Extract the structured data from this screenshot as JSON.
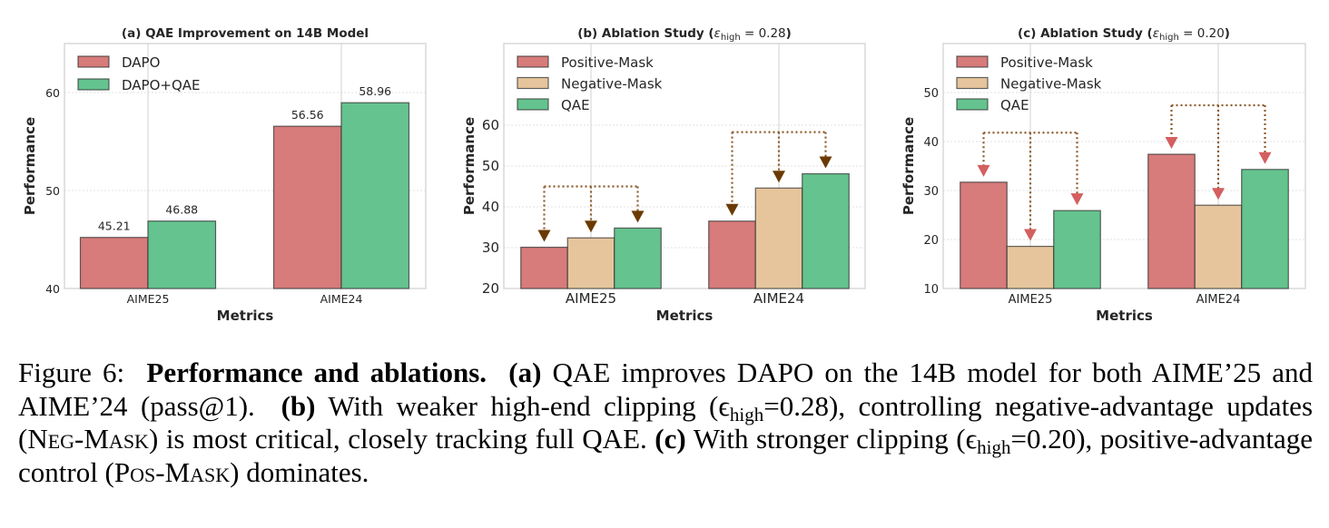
{
  "chart_data": [
    {
      "type": "bar",
      "id": "a",
      "title": "(a) QAE Improvement on 14B Model",
      "title_parts": {
        "main": "(a) QAE Improvement on 14B Model",
        "math": ""
      },
      "xlabel": "Metrics",
      "ylabel": "Performance",
      "categories": [
        "AIME25",
        "AIME24"
      ],
      "ylim": [
        40,
        65
      ],
      "yticks": [
        40,
        50,
        60
      ],
      "grid": true,
      "legend": "top-left",
      "series": [
        {
          "name": "DAPO",
          "color": "#d77b7b",
          "values": [
            45.21,
            56.56
          ],
          "labels": [
            "45.21",
            "56.56"
          ]
        },
        {
          "name": "DAPO+QAE",
          "color": "#64c38e",
          "values": [
            46.88,
            58.96
          ],
          "labels": [
            "46.88",
            "58.96"
          ]
        }
      ],
      "annotations": []
    },
    {
      "type": "bar",
      "id": "b",
      "title": "(b) Ablation Study (ε_high = 0.28)",
      "title_parts": {
        "main": "(b) Ablation Study (",
        "eps": "ε",
        "sub": "high",
        "rest": " = 0.28",
        "close": ")"
      },
      "xlabel": "Metrics",
      "ylabel": "Performance",
      "categories": [
        "AIME25",
        "AIME24"
      ],
      "ylim": [
        20,
        80
      ],
      "yticks": [
        20,
        30,
        40,
        50,
        60
      ],
      "grid": true,
      "legend": "top-left",
      "series": [
        {
          "name": "Positive-Mask",
          "color": "#d77b7b",
          "values": [
            30.1,
            36.5
          ]
        },
        {
          "name": "Negative-Mask",
          "color": "#e6c59c",
          "values": [
            32.4,
            44.6
          ]
        },
        {
          "name": "QAE",
          "color": "#64c38e",
          "values": [
            34.8,
            48.1
          ]
        }
      ],
      "annotations": [
        {
          "type": "dotted-bracket-arrows",
          "category": "AIME25",
          "bracket_level": 45,
          "arrow_color": "#6b3a00",
          "line_color": "#8b5a2b"
        },
        {
          "type": "dotted-bracket-arrows",
          "category": "AIME24",
          "bracket_level": 58.3,
          "arrow_color": "#6b3a00",
          "line_color": "#8b5a2b"
        }
      ]
    },
    {
      "type": "bar",
      "id": "c",
      "title": "(c) Ablation Study (ε_high = 0.20)",
      "title_parts": {
        "main": "(c) Ablation Study (",
        "eps": "ε",
        "sub": "high",
        "rest": " = 0.20",
        "close": ")"
      },
      "xlabel": "Metrics",
      "ylabel": "Performance",
      "categories": [
        "AIME25",
        "AIME24"
      ],
      "ylim": [
        10,
        60
      ],
      "yticks": [
        10,
        20,
        30,
        40,
        50
      ],
      "grid": true,
      "legend": "top-left",
      "series": [
        {
          "name": "Positive-Mask",
          "color": "#d77b7b",
          "values": [
            31.7,
            37.4
          ]
        },
        {
          "name": "Negative-Mask",
          "color": "#e6c59c",
          "values": [
            18.6,
            27.0
          ]
        },
        {
          "name": "QAE",
          "color": "#64c38e",
          "values": [
            25.9,
            34.3
          ]
        }
      ],
      "annotations": [
        {
          "type": "dotted-bracket-arrows",
          "category": "AIME25",
          "bracket_level": 41.8,
          "arrow_color": "#d45f5f",
          "line_color": "#8b5a2b"
        },
        {
          "type": "dotted-bracket-arrows",
          "category": "AIME24",
          "bracket_level": 47.4,
          "arrow_color": "#d45f5f",
          "line_color": "#8b5a2b"
        }
      ]
    }
  ],
  "caption": {
    "figure_label": "Figure 6:",
    "bold_title": "Performance and ablations.",
    "a_label": "(a)",
    "a_text": "QAE improves DAPO on the 14B model for both AIME’25 and AIME’24 (pass@1).",
    "b_label": "(b)",
    "b_text_1": "With weaker high-end clipping (",
    "b_eps": "ϵ",
    "b_sub": "high",
    "b_text_2": "=0.28), controlling negative-advantage updates (",
    "b_neg_mask": "Neg-Mask",
    "b_text_3": ") is most critical, closely tracking full QAE.",
    "c_label": "(c)",
    "c_text_1": "With stronger clipping (",
    "c_eps": "ϵ",
    "c_sub": "high",
    "c_text_2": "=0.20), positive-advantage control (",
    "c_pos_mask": "Pos-Mask",
    "c_text_3": ") dominates."
  }
}
